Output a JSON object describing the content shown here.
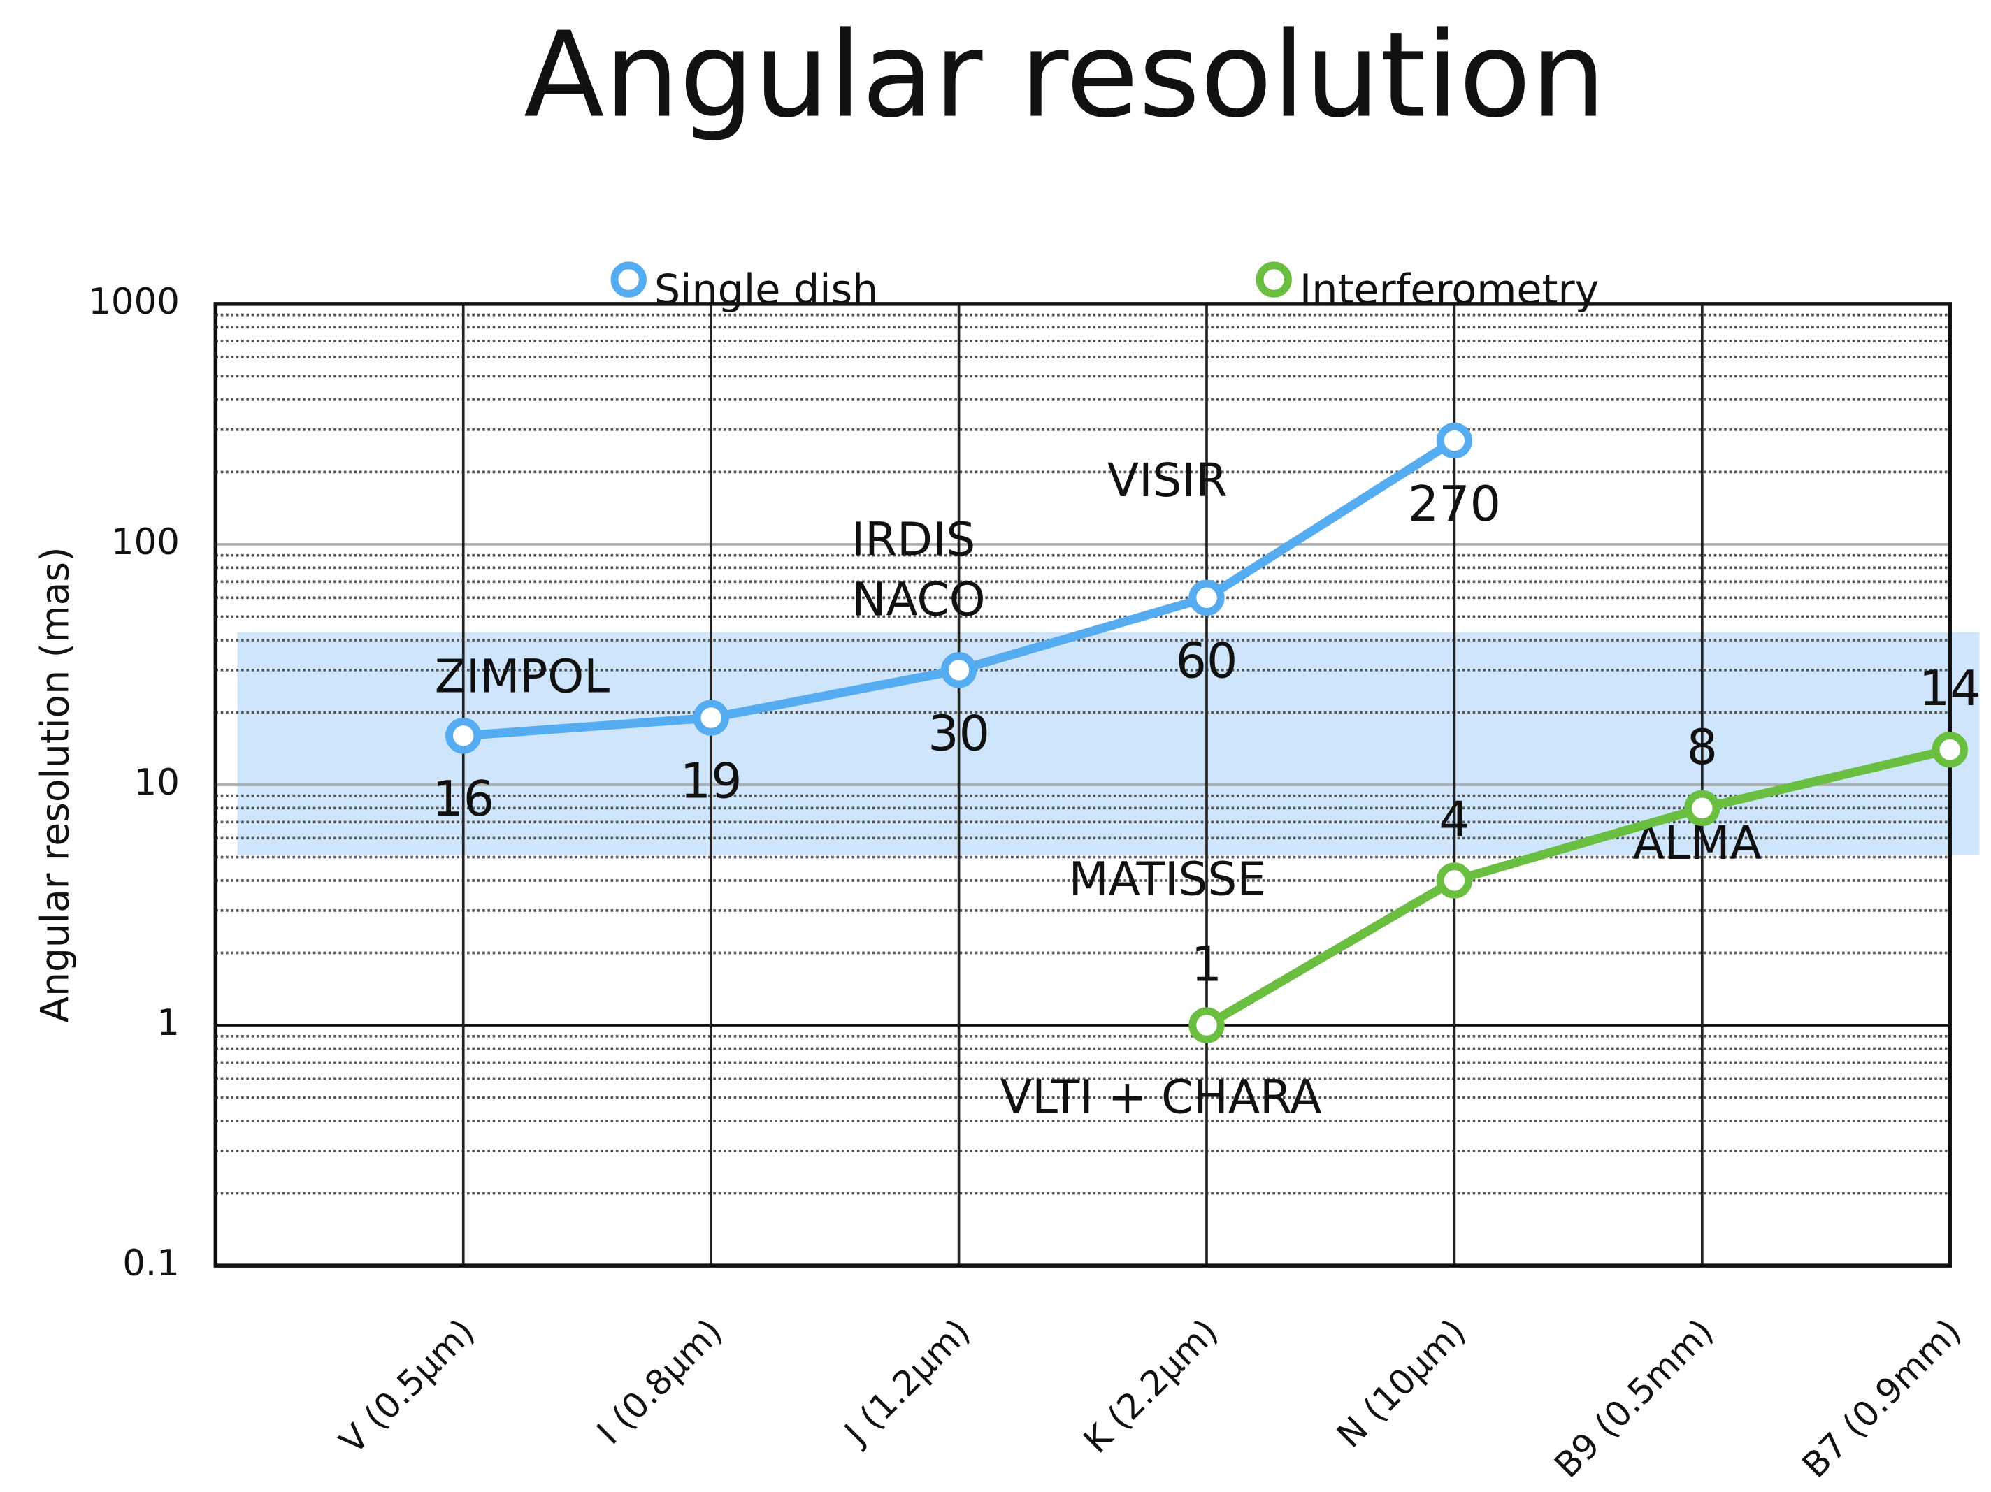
{
  "chart_data": {
    "type": "line",
    "title": "Angular resolution",
    "y_label": "Angular resolution (mas)",
    "categories": [
      "V (0.5µm)",
      "I (0.8µm)",
      "J (1.2µm)",
      "K (2.2µm)",
      "N (10µm)",
      "B9 (0.5mm)",
      "B7 (0.9mm)"
    ],
    "series": [
      {
        "name": "Single dish",
        "color": "#55acf0",
        "values": [
          16,
          19,
          30,
          60,
          270,
          null,
          null
        ]
      },
      {
        "name": "Interferometry",
        "color": "#6abf40",
        "values": [
          null,
          null,
          null,
          1,
          4,
          8,
          14
        ]
      }
    ],
    "annotations": [
      "ZIMPOL",
      "IRDIS",
      "NACO",
      "VISIR",
      "MATISSE",
      "VLTI + CHARA",
      "ALMA"
    ],
    "ylim": [
      0.1,
      1000
    ],
    "yticks": [
      0.1,
      1,
      10,
      100,
      1000
    ],
    "log_y": true,
    "grid": true,
    "legend": "top"
  }
}
